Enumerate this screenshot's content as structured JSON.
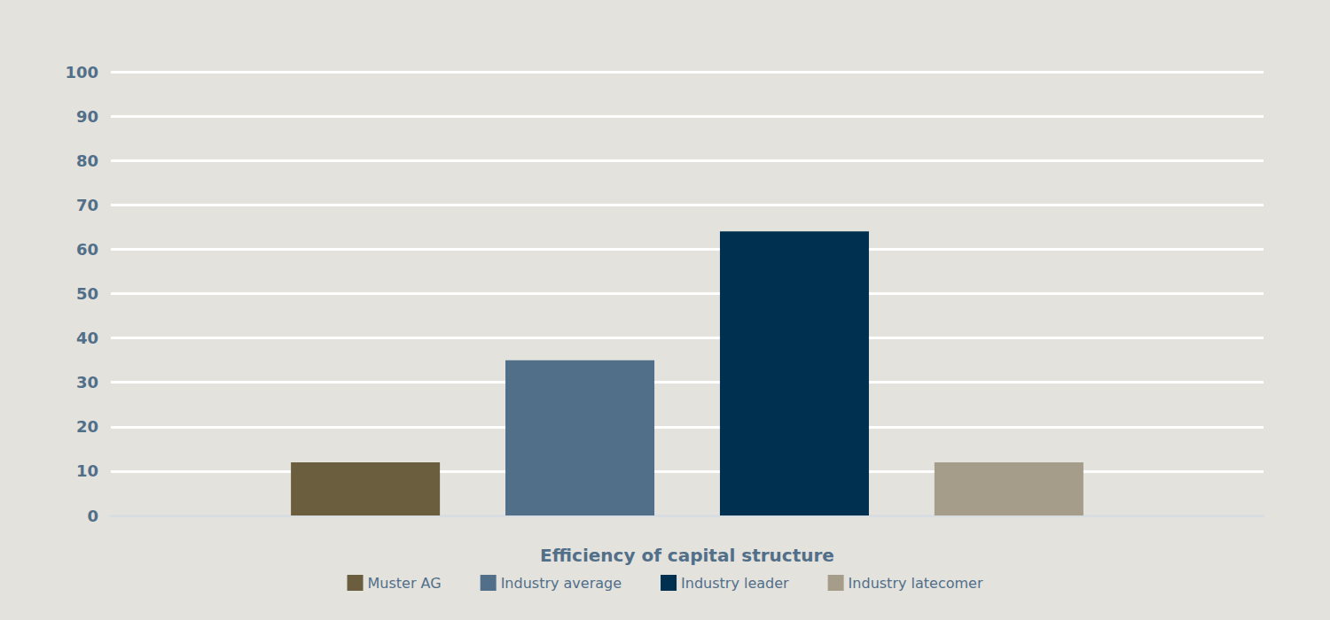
{
  "chart_data": {
    "type": "bar",
    "x_label": "Efficiency of capital structure",
    "categories": [
      null
    ],
    "series": [
      {
        "name": "Muster AG",
        "color": "#6b5e3e",
        "values": [
          12
        ]
      },
      {
        "name": "Industry average",
        "color": "#516f89",
        "values": [
          35
        ]
      },
      {
        "name": "Industry leader",
        "color": "#00304f",
        "values": [
          64
        ]
      },
      {
        "name": "Industry latecomer",
        "color": "#a59d8a",
        "values": [
          12
        ]
      }
    ],
    "ylim": [
      0,
      100
    ],
    "yticks": [
      0,
      10,
      20,
      30,
      40,
      50,
      60,
      70,
      80,
      90,
      100
    ],
    "grid": true,
    "legend": "bottom"
  }
}
